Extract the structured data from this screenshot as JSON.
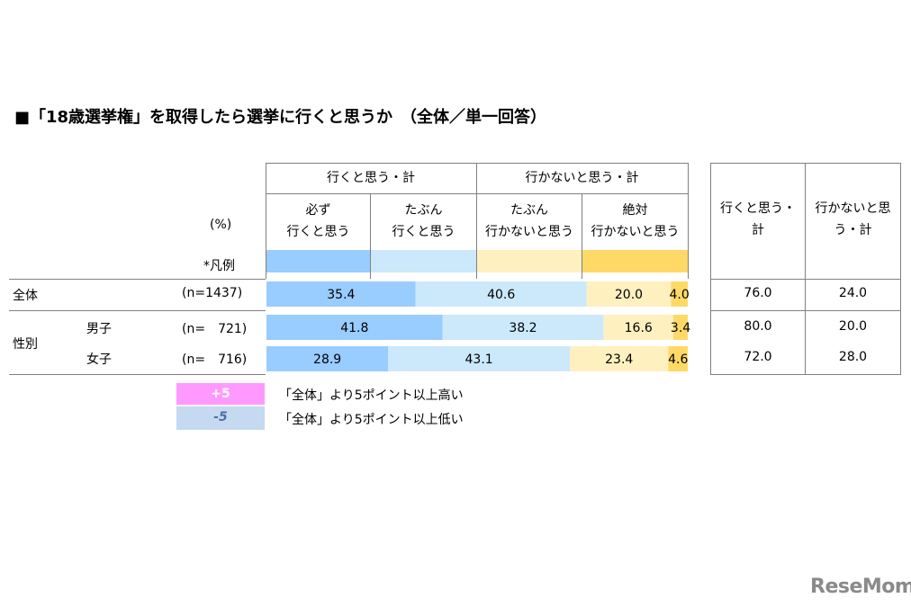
{
  "title": "■「18歳選挙権」を取得したら選挙に行くと思うか　（全体／単一回答）",
  "headers": {
    "group_yes": "行くと思う・計",
    "group_no": "行かないと思う・計",
    "cat1_line1": "必ず",
    "cat1_line2": "行くと思う",
    "cat2_line1": "たぶん",
    "cat2_line2": "行くと思う",
    "cat3_line1": "たぶん",
    "cat3_line2": "行かないと思う",
    "cat4_line1": "絶対",
    "cat4_line2": "行かないと思う",
    "unit": "(%)",
    "legend_label": "*凡例",
    "sum_yes_line1": "行くと思う・",
    "sum_yes_line2": "計",
    "sum_no_line1": "行かないと思",
    "sum_no_line2": "う・計"
  },
  "row_labels": {
    "all": "全体",
    "all_n": "(n=1437)",
    "gender": "性別",
    "male": "男子",
    "male_n": "(n=　721)",
    "female": "女子",
    "female_n": "(n=　716)"
  },
  "colors": [
    "#99ccff",
    "#cce8fb",
    "#fff0c0",
    "#ffd966"
  ],
  "legend": {
    "plus_label": "+5",
    "plus_text": "「全体」より5ポイント以上高い",
    "plus_color": "#ff99ff",
    "minus_label": "-5",
    "minus_text": "「全体」より5ポイント以上低い",
    "minus_color": "#c5d9f1"
  },
  "logo": "ReseMom",
  "chart_data": {
    "type": "bar",
    "stacked": true,
    "orientation": "horizontal",
    "categories": [
      "全体",
      "男子",
      "女子"
    ],
    "series": [
      {
        "name": "必ず行くと思う",
        "values": [
          35.4,
          41.8,
          28.9
        ]
      },
      {
        "name": "たぶん行くと思う",
        "values": [
          40.6,
          38.2,
          43.1
        ]
      },
      {
        "name": "たぶん行かないと思う",
        "values": [
          20.0,
          16.6,
          23.4
        ]
      },
      {
        "name": "絶対行かないと思う",
        "values": [
          4.0,
          3.4,
          4.6
        ]
      }
    ],
    "xlim": [
      0,
      100
    ],
    "totals": {
      "yes": [
        "76.0",
        "80.0",
        "72.0"
      ],
      "no": [
        "24.0",
        "20.0",
        "28.0"
      ]
    },
    "value_labels": [
      [
        "35.4",
        "40.6",
        "20.0",
        "4.0"
      ],
      [
        "41.8",
        "38.2",
        "16.6",
        "3.4"
      ],
      [
        "28.9",
        "43.1",
        "23.4",
        "4.6"
      ]
    ]
  }
}
